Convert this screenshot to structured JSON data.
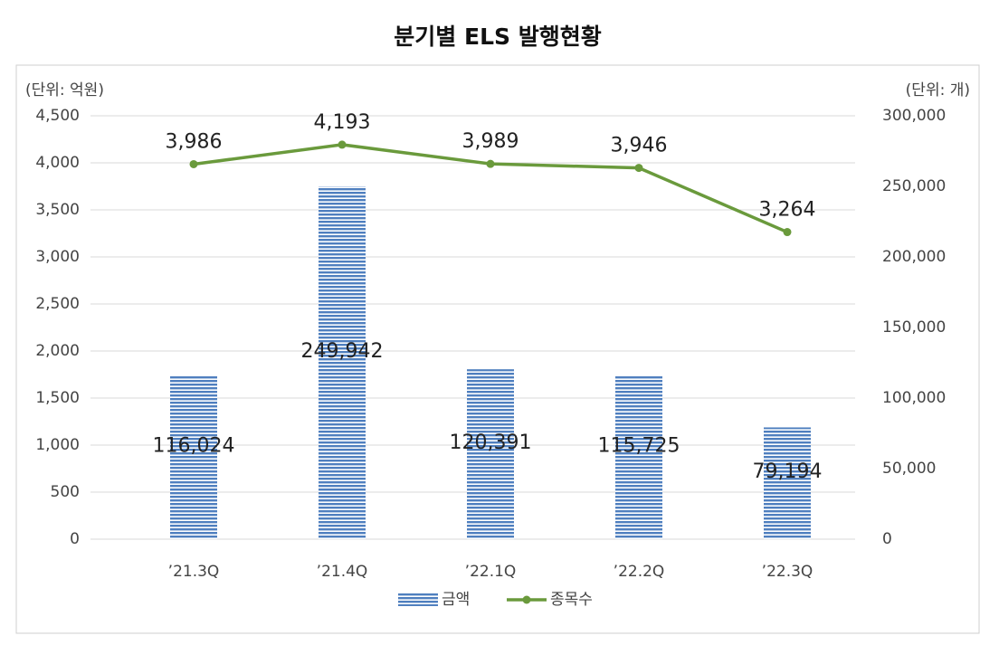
{
  "chart_data": {
    "type": "bar-line",
    "title": "분기별 ELS 발행현황",
    "y_label": "(단위: 억원)",
    "y2_label": "(단위: 개)",
    "categories": [
      "’21.3Q",
      "’21.4Q",
      "’22.1Q",
      "’22.2Q",
      "’22.3Q"
    ],
    "series": [
      {
        "name": "금액",
        "type": "bar",
        "axis": "y2",
        "color": "#4f7fbf",
        "values": [
          116024,
          249942,
          120391,
          115725,
          79194
        ],
        "value_labels": [
          "116,024",
          "249,942",
          "120,391",
          "115,725",
          "79,194"
        ]
      },
      {
        "name": "종목수",
        "type": "line",
        "axis": "y",
        "color": "#6a9a3c",
        "values": [
          3986,
          4193,
          3989,
          3946,
          3264
        ],
        "value_labels": [
          "3,986",
          "4,193",
          "3,989",
          "3,946",
          "3,264"
        ]
      }
    ],
    "ylim": [
      0,
      4500
    ],
    "yticks": [
      0,
      500,
      {
        "value": 1000,
        "label": "1,000"
      },
      {
        "value": 1500,
        "label": "1,500"
      },
      {
        "value": 2000,
        "label": "2,000"
      },
      {
        "value": 2500,
        "label": "2,500"
      },
      {
        "value": 3000,
        "label": "3,000"
      },
      {
        "value": 3500,
        "label": "3,500"
      },
      {
        "value": 4000,
        "label": "4,000"
      },
      {
        "value": 4500,
        "label": "4,500"
      }
    ],
    "y2lim": [
      0,
      300000
    ],
    "y2ticks": [
      0,
      {
        "value": 50000,
        "label": "50,000"
      },
      {
        "value": 100000,
        "label": "100,000"
      },
      {
        "value": 150000,
        "label": "150,000"
      },
      {
        "value": 200000,
        "label": "200,000"
      },
      {
        "value": 250000,
        "label": "250,000"
      },
      {
        "value": 300000,
        "label": "300,000"
      }
    ],
    "grid": true
  }
}
